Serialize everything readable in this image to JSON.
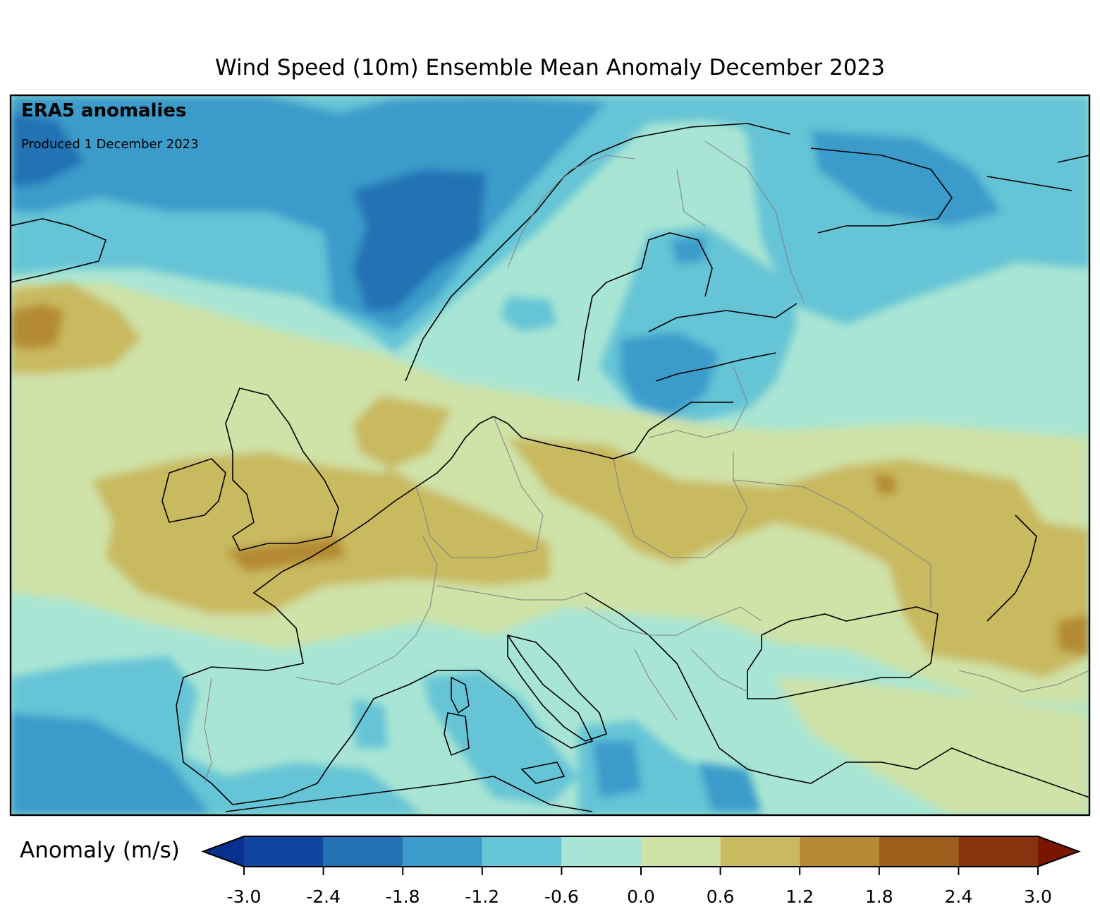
{
  "title": "Wind Speed (10m) Ensemble Mean Anomaly December 2023",
  "badge": {
    "title": "ERA5 anomalies",
    "subtitle": "Produced 1 December 2023"
  },
  "colorbar": {
    "label": "Anomaly (m/s)",
    "ticks": [
      "-3.0",
      "-2.4",
      "-1.8",
      "-1.2",
      "-0.6",
      "0.0",
      "0.6",
      "1.2",
      "1.8",
      "2.4",
      "3.0"
    ],
    "bins": [
      {
        "range": [
          -3.0,
          -2.4
        ],
        "color": "#1045a0"
      },
      {
        "range": [
          -2.4,
          -1.8
        ],
        "color": "#2472b4"
      },
      {
        "range": [
          -1.8,
          -1.2
        ],
        "color": "#3b9bca"
      },
      {
        "range": [
          -1.2,
          -0.6
        ],
        "color": "#65c4d6"
      },
      {
        "range": [
          -0.6,
          0.0
        ],
        "color": "#a9e5d4"
      },
      {
        "range": [
          0.0,
          0.6
        ],
        "color": "#cfe2a7"
      },
      {
        "range": [
          0.6,
          1.2
        ],
        "color": "#c9b95f"
      },
      {
        "range": [
          1.2,
          1.8
        ],
        "color": "#b48a32"
      },
      {
        "range": [
          1.8,
          2.4
        ],
        "color": "#9c5e1b"
      },
      {
        "range": [
          2.4,
          3.0
        ],
        "color": "#87330d"
      }
    ],
    "under_color": "#08308f",
    "over_color": "#7a1500"
  },
  "map": {
    "region": "Europe",
    "variable": "Wind Speed (10m)",
    "background_anomaly_color": "#a9e5d4"
  }
}
